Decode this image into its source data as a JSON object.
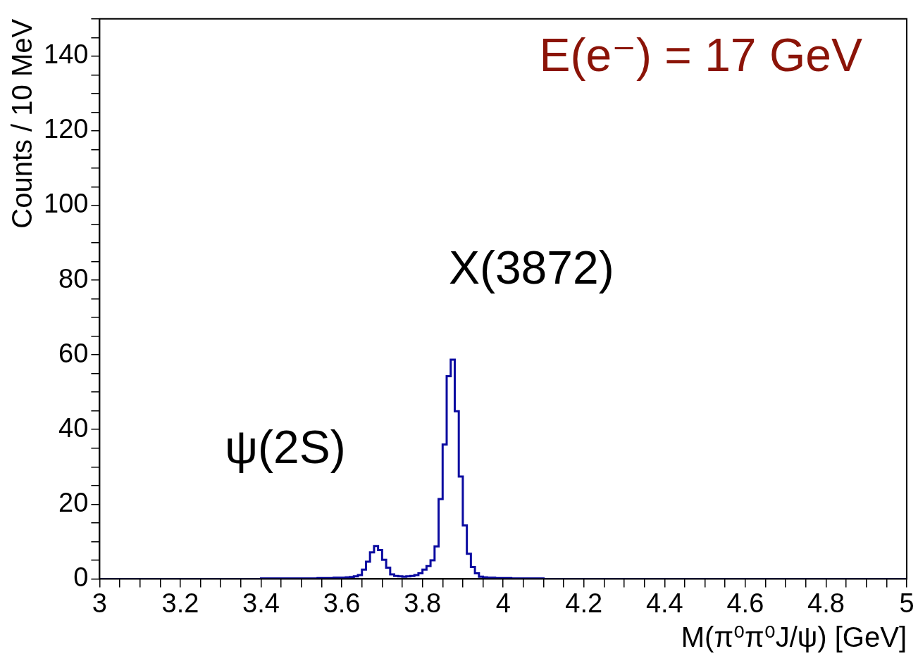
{
  "chart_data": {
    "type": "histogram",
    "xlabel": "M(π⁰π⁰J/ψ) [GeV]",
    "ylabel": "Counts / 10 MeV",
    "color": "#0a0aa0",
    "annotations": [
      "E(e⁻) = 17 GeV",
      "X(3872)",
      "ψ(2S)"
    ],
    "bins": [
      3,
      3.01,
      3.02,
      3.03,
      3.04,
      3.05,
      3.06,
      3.07,
      3.08,
      3.09,
      3.1,
      3.11,
      3.12,
      3.13,
      3.14,
      3.15,
      3.16,
      3.17,
      3.18,
      3.19,
      3.2,
      3.21,
      3.22,
      3.23,
      3.24,
      3.25,
      3.26,
      3.27,
      3.28,
      3.29,
      3.3,
      3.31,
      3.32,
      3.33,
      3.34,
      3.35,
      3.36,
      3.37,
      3.38,
      3.39,
      3.4,
      3.41,
      3.42,
      3.43,
      3.44,
      3.45,
      3.46,
      3.47,
      3.48,
      3.49,
      3.5,
      3.51,
      3.52,
      3.53,
      3.54,
      3.55,
      3.56,
      3.57,
      3.58,
      3.59,
      3.6,
      3.61,
      3.62,
      3.63,
      3.64,
      3.65,
      3.66,
      3.67,
      3.68,
      3.69,
      3.7,
      3.71,
      3.72,
      3.73,
      3.74,
      3.75,
      3.76,
      3.77,
      3.78,
      3.79,
      3.8,
      3.81,
      3.82,
      3.83,
      3.84,
      3.85,
      3.86,
      3.87,
      3.88,
      3.89,
      3.9,
      3.91,
      3.92,
      3.93,
      3.94,
      3.95,
      3.96,
      3.97,
      3.98,
      3.99,
      4,
      4.01,
      4.02,
      4.03,
      4.04,
      4.05,
      4.06,
      4.07,
      4.08,
      4.09,
      4.1,
      4.11,
      4.12,
      4.13,
      4.14,
      4.15,
      4.16,
      4.17,
      4.18,
      4.19,
      4.2,
      4.21,
      4.22,
      4.23,
      4.24,
      4.25,
      4.26,
      4.27,
      4.28,
      4.29,
      4.3,
      4.31,
      4.32,
      4.33,
      4.34,
      4.35,
      4.36,
      4.37,
      4.38,
      4.39,
      4.4,
      4.41,
      4.42,
      4.43,
      4.44,
      4.45,
      4.46,
      4.47,
      4.48,
      4.49,
      4.5,
      4.51,
      4.52,
      4.53,
      4.54,
      4.55,
      4.56,
      4.57,
      4.58,
      4.59,
      4.6,
      4.61,
      4.62,
      4.63,
      4.64,
      4.65,
      4.66,
      4.67,
      4.68,
      4.69,
      4.7,
      4.71,
      4.72,
      4.73,
      4.74,
      4.75,
      4.76,
      4.77,
      4.78,
      4.79,
      4.8,
      4.81,
      4.82,
      4.83,
      4.84,
      4.85,
      4.86,
      4.87,
      4.88,
      4.89,
      4.9,
      4.91,
      4.92,
      4.93,
      4.94,
      4.95,
      4.96,
      4.97,
      4.98,
      4.99,
      5
    ],
    "values": [
      0,
      0,
      0,
      0,
      0,
      0,
      0,
      0,
      0,
      0,
      0,
      0,
      0,
      0,
      0,
      0,
      0,
      0,
      0,
      0,
      0,
      0,
      0,
      0,
      0,
      0,
      0,
      0,
      0,
      0,
      0,
      0,
      0,
      0,
      0,
      0,
      0,
      0,
      0,
      0,
      0.1,
      0.1,
      0.1,
      0.1,
      0.1,
      0.1,
      0.1,
      0.1,
      0.1,
      0.1,
      0.1,
      0.1,
      0.1,
      0.1,
      0.2,
      0.2,
      0.2,
      0.2,
      0.3,
      0.3,
      0.3,
      0.4,
      0.5,
      0.7,
      1.0,
      2.5,
      4.6,
      7.1,
      8.8,
      7.7,
      5.1,
      3.0,
      1.2,
      0.8,
      0.7,
      0.6,
      0.7,
      0.8,
      1.0,
      1.5,
      2.5,
      3.4,
      5.0,
      8.7,
      21.4,
      36,
      54.3,
      58.7,
      44.9,
      27.4,
      14.3,
      6.7,
      3.2,
      1.5,
      0.6,
      0.4,
      0.3,
      0.3,
      0.2,
      0.2,
      0.2,
      0.2,
      0.1,
      0.1,
      0.1,
      0.1,
      0.1,
      0.1,
      0.1,
      0.1,
      0,
      0,
      0,
      0,
      0,
      0,
      0,
      0,
      0,
      0,
      0,
      0,
      0,
      0,
      0,
      0,
      0,
      0,
      0,
      0,
      0,
      0,
      0,
      0,
      0,
      0,
      0,
      0,
      0,
      0,
      0,
      0,
      0,
      0,
      0,
      0,
      0,
      0,
      0,
      0,
      0,
      0,
      0,
      0,
      0,
      0,
      0,
      0,
      0,
      0,
      0,
      0,
      0,
      0,
      0,
      0,
      0,
      0,
      0,
      0,
      0,
      0,
      0,
      0,
      0,
      0,
      0,
      0,
      0,
      0,
      0,
      0,
      0,
      0,
      0,
      0,
      0,
      0,
      0,
      0,
      0,
      0,
      0,
      0,
      0,
      0,
      0,
      0,
      0,
      0
    ],
    "xlim": [
      3,
      5
    ],
    "xticks": [
      3,
      {
        "value": 3.05,
        "label": null
      },
      {
        "value": 3.1,
        "label": null
      },
      {
        "value": 3.15,
        "label": null
      },
      3.2,
      {
        "value": 3.25,
        "label": null
      },
      {
        "value": 3.3,
        "label": null
      },
      {
        "value": 3.35,
        "label": null
      },
      3.4,
      {
        "value": 3.45,
        "label": null
      },
      {
        "value": 3.5,
        "label": null
      },
      {
        "value": 3.55,
        "label": null
      },
      3.6,
      {
        "value": 3.65,
        "label": null
      },
      {
        "value": 3.7,
        "label": null
      },
      {
        "value": 3.75,
        "label": null
      },
      3.8,
      {
        "value": 3.85,
        "label": null
      },
      {
        "value": 3.9,
        "label": null
      },
      {
        "value": 3.95,
        "label": null
      },
      4,
      {
        "value": 4.05,
        "label": null
      },
      {
        "value": 4.1,
        "label": null
      },
      {
        "value": 4.15,
        "label": null
      },
      4.2,
      {
        "value": 4.25,
        "label": null
      },
      {
        "value": 4.3,
        "label": null
      },
      {
        "value": 4.35,
        "label": null
      },
      4.4,
      {
        "value": 4.45,
        "label": null
      },
      {
        "value": 4.5,
        "label": null
      },
      {
        "value": 4.55,
        "label": null
      },
      4.6,
      {
        "value": 4.65,
        "label": null
      },
      {
        "value": 4.7,
        "label": null
      },
      {
        "value": 4.75,
        "label": null
      },
      4.8,
      {
        "value": 4.85,
        "label": null
      },
      {
        "value": 4.9,
        "label": null
      },
      {
        "value": 4.95,
        "label": null
      },
      5
    ],
    "ylim": [
      0,
      150
    ],
    "yticks": [
      0,
      {
        "value": 5,
        "label": null
      },
      {
        "value": 10,
        "label": null
      },
      {
        "value": 15,
        "label": null
      },
      20,
      {
        "value": 25,
        "label": null
      },
      {
        "value": 30,
        "label": null
      },
      {
        "value": 35,
        "label": null
      },
      40,
      {
        "value": 45,
        "label": null
      },
      {
        "value": 50,
        "label": null
      },
      {
        "value": 55,
        "label": null
      },
      60,
      {
        "value": 65,
        "label": null
      },
      {
        "value": 70,
        "label": null
      },
      {
        "value": 75,
        "label": null
      },
      80,
      {
        "value": 85,
        "label": null
      },
      {
        "value": 90,
        "label": null
      },
      {
        "value": 95,
        "label": null
      },
      100,
      {
        "value": 105,
        "label": null
      },
      {
        "value": 110,
        "label": null
      },
      {
        "value": 115,
        "label": null
      },
      120,
      {
        "value": 125,
        "label": null
      },
      {
        "value": 130,
        "label": null
      },
      {
        "value": 135,
        "label": null
      },
      140,
      {
        "value": 145,
        "label": null
      },
      {
        "value": 150,
        "label": null
      }
    ],
    "grid": false,
    "legend": false
  }
}
